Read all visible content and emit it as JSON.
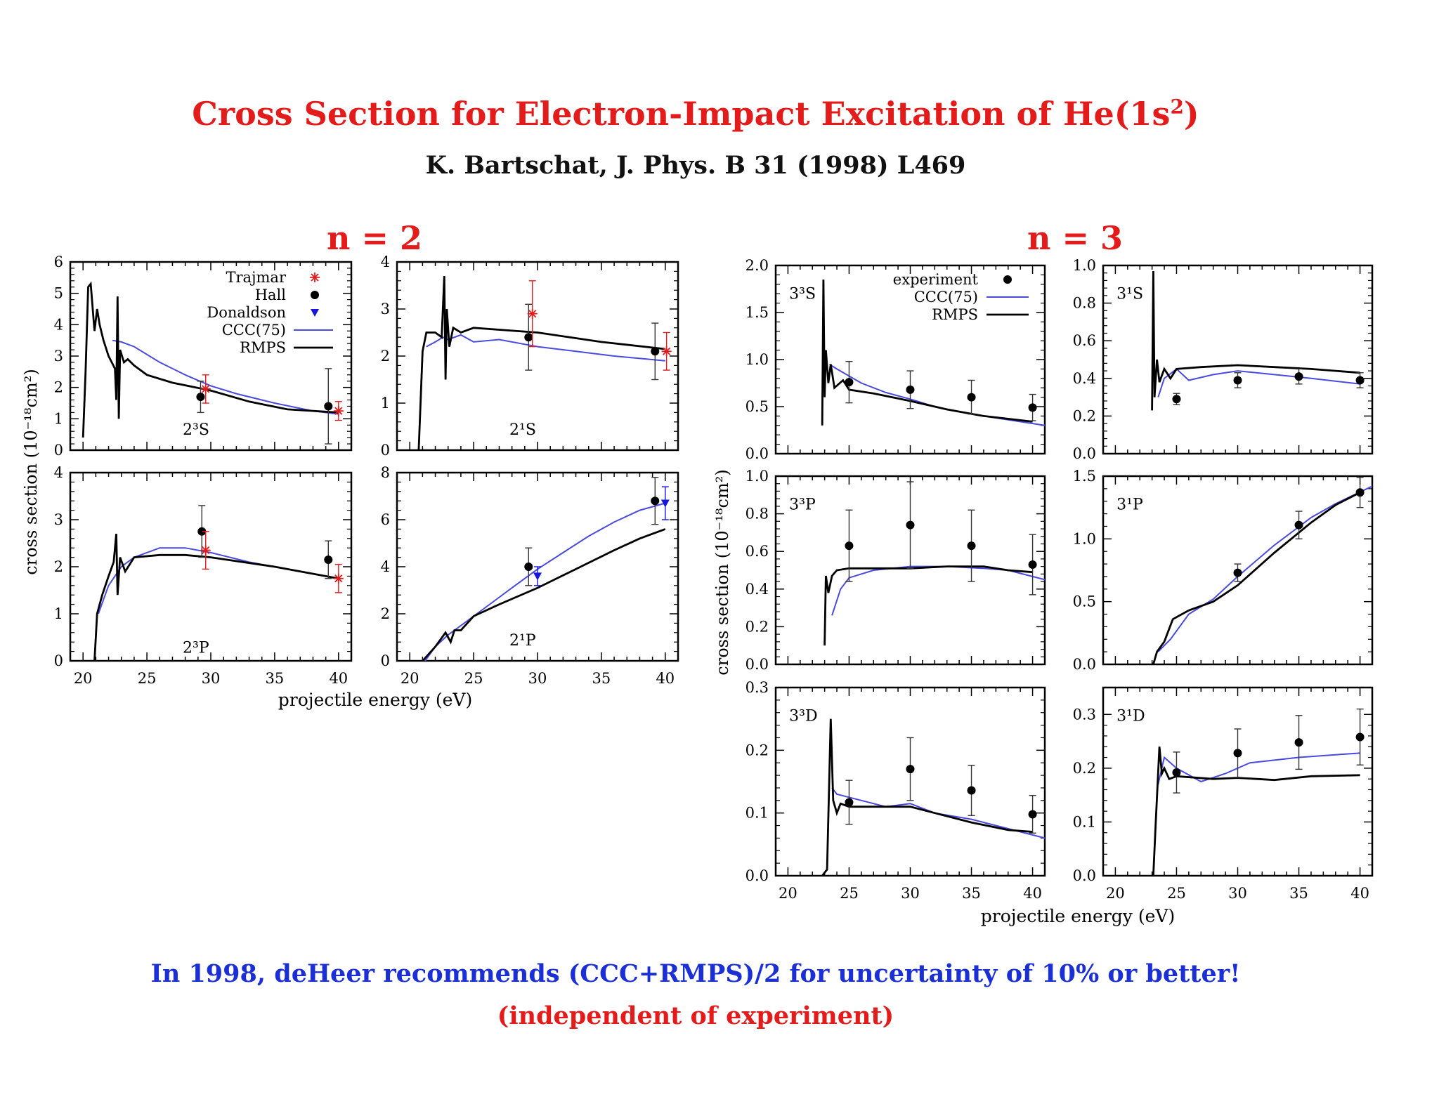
{
  "title": {
    "main_prefix": "Cross Section for Electron-Impact Excitation of He(1s",
    "main_sup": "2",
    "main_suffix": ")",
    "citation": "K. Bartschat, J. Phys. B 31 (1998) L469"
  },
  "groups": {
    "n2": "n = 2",
    "n3": "n = 3"
  },
  "footer": {
    "recommend": "In 1998, deHeer recommends (CCC+RMPS)/2 for uncertainty of 10% or better!",
    "independent": "(independent of experiment)"
  },
  "colors": {
    "title": "#e31b1b",
    "footer_blue": "#1b2fd6",
    "ccc": "#4a4adf",
    "rmps": "#000000",
    "trajmar": "#e31b1b",
    "donaldson": "#1515dd"
  },
  "axis_labels": {
    "n2_ylabel": "cross section (10⁻¹⁸cm²)",
    "n3_ylabel": "cross section (10⁻¹⁸cm²)",
    "n2_xlabel": "projectile energy (eV)",
    "n3_xlabel": "projectile energy (eV)"
  },
  "legend_n2": {
    "trajmar": "Trajmar",
    "hall": "Hall",
    "donaldson": "Donaldson",
    "ccc": "CCC(75)",
    "rmps": "RMPS"
  },
  "legend_n3": {
    "experiment": "experiment",
    "ccc": "CCC(75)",
    "rmps": "RMPS"
  },
  "chart_data": [
    {
      "type": "line",
      "label": "2³S",
      "xlim": [
        19,
        41
      ],
      "ylim": [
        0,
        6
      ],
      "yticks": [
        "0",
        "1",
        "2",
        "3",
        "4",
        "5",
        "6"
      ],
      "xticks": [
        "20",
        "25",
        "30",
        "35",
        "40"
      ],
      "ccc": [
        [
          22.3,
          3.5
        ],
        [
          23,
          3.45
        ],
        [
          24,
          3.3
        ],
        [
          26,
          2.8
        ],
        [
          28,
          2.4
        ],
        [
          30,
          2.05
        ],
        [
          32,
          1.8
        ],
        [
          35,
          1.5
        ],
        [
          38,
          1.25
        ],
        [
          40,
          1.15
        ]
      ],
      "rmps": [
        [
          20,
          0.4
        ],
        [
          20.2,
          2.5
        ],
        [
          20.4,
          5.2
        ],
        [
          20.6,
          5.3
        ],
        [
          20.9,
          3.8
        ],
        [
          21.1,
          4.5
        ],
        [
          21.3,
          4.0
        ],
        [
          21.6,
          3.5
        ],
        [
          22.0,
          3.0
        ],
        [
          22.5,
          2.6
        ],
        [
          22.6,
          1.6
        ],
        [
          22.7,
          4.9
        ],
        [
          22.8,
          1.0
        ],
        [
          22.9,
          3.2
        ],
        [
          23.2,
          2.8
        ],
        [
          23.5,
          2.9
        ],
        [
          24,
          2.7
        ],
        [
          25,
          2.4
        ],
        [
          27,
          2.15
        ],
        [
          30,
          1.9
        ],
        [
          33,
          1.55
        ],
        [
          36,
          1.3
        ],
        [
          40,
          1.2
        ]
      ],
      "hall": [
        [
          29.2,
          1.7,
          0.5
        ],
        [
          39.2,
          1.4,
          1.2
        ]
      ],
      "trajmar": [
        [
          29.6,
          1.95,
          0.45
        ],
        [
          40,
          1.25,
          0.3
        ]
      ]
    },
    {
      "type": "line",
      "label": "2¹S",
      "xlim": [
        19,
        41
      ],
      "ylim": [
        0,
        4
      ],
      "yticks": [
        "0",
        "1",
        "2",
        "3",
        "4"
      ],
      "xticks": [
        "20",
        "25",
        "30",
        "35",
        "40"
      ],
      "ccc": [
        [
          21.3,
          2.2
        ],
        [
          22,
          2.3
        ],
        [
          22.6,
          2.4
        ],
        [
          23,
          2.35
        ],
        [
          24,
          2.45
        ],
        [
          25,
          2.3
        ],
        [
          27,
          2.35
        ],
        [
          30,
          2.2
        ],
        [
          33,
          2.1
        ],
        [
          36,
          2.0
        ],
        [
          40,
          1.9
        ]
      ],
      "rmps": [
        [
          20.7,
          0.0
        ],
        [
          21.0,
          2.1
        ],
        [
          21.3,
          2.5
        ],
        [
          22.0,
          2.5
        ],
        [
          22.5,
          2.4
        ],
        [
          22.7,
          3.7
        ],
        [
          22.8,
          1.5
        ],
        [
          22.9,
          3.0
        ],
        [
          23.1,
          2.2
        ],
        [
          23.4,
          2.6
        ],
        [
          24,
          2.5
        ],
        [
          25,
          2.6
        ],
        [
          30,
          2.5
        ],
        [
          35,
          2.3
        ],
        [
          40,
          2.15
        ]
      ],
      "hall": [
        [
          29.3,
          2.4,
          0.7
        ],
        [
          39.2,
          2.1,
          0.6
        ]
      ],
      "trajmar": [
        [
          29.6,
          2.9,
          0.7
        ],
        [
          40.1,
          2.1,
          0.4
        ]
      ]
    },
    {
      "type": "line",
      "label": "2³P",
      "xlim": [
        19,
        41
      ],
      "ylim": [
        0,
        4
      ],
      "yticks": [
        "0",
        "1",
        "2",
        "3",
        "4"
      ],
      "xticks": [
        "20",
        "25",
        "30",
        "35",
        "40"
      ],
      "ccc": [
        [
          21.2,
          1.0
        ],
        [
          22,
          1.6
        ],
        [
          23,
          2.0
        ],
        [
          24,
          2.2
        ],
        [
          26,
          2.4
        ],
        [
          28,
          2.4
        ],
        [
          30,
          2.3
        ],
        [
          33,
          2.1
        ],
        [
          36,
          1.95
        ],
        [
          40,
          1.75
        ]
      ],
      "rmps": [
        [
          20.9,
          0.0
        ],
        [
          21.1,
          1.0
        ],
        [
          21.5,
          1.4
        ],
        [
          22,
          1.8
        ],
        [
          22.4,
          2.1
        ],
        [
          22.6,
          2.7
        ],
        [
          22.7,
          1.4
        ],
        [
          22.9,
          2.2
        ],
        [
          23.3,
          1.9
        ],
        [
          24,
          2.2
        ],
        [
          26,
          2.25
        ],
        [
          28,
          2.25
        ],
        [
          30,
          2.2
        ],
        [
          35,
          2.0
        ],
        [
          40,
          1.75
        ]
      ],
      "hall": [
        [
          29.3,
          2.75,
          0.55
        ],
        [
          39.2,
          2.15,
          0.4
        ]
      ],
      "trajmar": [
        [
          29.6,
          2.35,
          0.4
        ],
        [
          40,
          1.75,
          0.3
        ]
      ]
    },
    {
      "type": "line",
      "label": "2¹P",
      "xlim": [
        19,
        41
      ],
      "ylim": [
        0,
        8
      ],
      "yticks": [
        "0",
        "2",
        "4",
        "6",
        "8"
      ],
      "xticks": [
        "20",
        "25",
        "30",
        "35",
        "40"
      ],
      "ccc": [
        [
          21.2,
          0.0
        ],
        [
          22,
          0.6
        ],
        [
          23,
          1.1
        ],
        [
          24,
          1.5
        ],
        [
          26,
          2.3
        ],
        [
          28,
          3.1
        ],
        [
          30,
          3.9
        ],
        [
          32,
          4.6
        ],
        [
          34,
          5.3
        ],
        [
          36,
          5.9
        ],
        [
          38,
          6.4
        ],
        [
          40,
          6.7
        ]
      ],
      "rmps": [
        [
          21.0,
          0.0
        ],
        [
          22,
          0.6
        ],
        [
          22.8,
          1.2
        ],
        [
          23.2,
          0.8
        ],
        [
          23.5,
          1.3
        ],
        [
          24,
          1.3
        ],
        [
          25,
          1.9
        ],
        [
          27,
          2.4
        ],
        [
          30,
          3.1
        ],
        [
          33,
          3.9
        ],
        [
          36,
          4.7
        ],
        [
          38,
          5.2
        ],
        [
          40,
          5.6
        ]
      ],
      "hall": [
        [
          29.3,
          4.0,
          0.8
        ],
        [
          39.2,
          6.8,
          1.0
        ]
      ],
      "donaldson": [
        [
          30,
          3.6,
          0.4
        ],
        [
          40,
          6.7,
          0.7
        ]
      ]
    },
    {
      "type": "line",
      "label": "3³S",
      "xlim": [
        19,
        41
      ],
      "ylim": [
        0,
        2.0
      ],
      "yticks": [
        "0.0",
        "0.5",
        "1.0",
        "1.5",
        "2.0"
      ],
      "xticks": [
        "20",
        "25",
        "30",
        "35",
        "40"
      ],
      "ccc": [
        [
          23.4,
          0.95
        ],
        [
          24,
          0.9
        ],
        [
          26,
          0.75
        ],
        [
          28,
          0.65
        ],
        [
          30,
          0.58
        ],
        [
          32,
          0.5
        ],
        [
          35,
          0.42
        ],
        [
          38,
          0.36
        ],
        [
          41,
          0.3
        ]
      ],
      "rmps": [
        [
          22.8,
          0.3
        ],
        [
          22.9,
          1.85
        ],
        [
          23.0,
          0.6
        ],
        [
          23.1,
          1.1
        ],
        [
          23.3,
          0.75
        ],
        [
          23.5,
          0.95
        ],
        [
          23.8,
          0.7
        ],
        [
          24.5,
          0.78
        ],
        [
          25,
          0.68
        ],
        [
          27,
          0.64
        ],
        [
          30,
          0.56
        ],
        [
          33,
          0.47
        ],
        [
          36,
          0.4
        ],
        [
          40,
          0.34
        ]
      ],
      "experiment": [
        [
          25,
          0.76,
          0.22
        ],
        [
          30,
          0.68,
          0.2
        ],
        [
          35,
          0.6,
          0.18
        ],
        [
          40,
          0.49,
          0.14
        ]
      ]
    },
    {
      "type": "line",
      "label": "3¹S",
      "xlim": [
        19,
        41
      ],
      "ylim": [
        0,
        1.0
      ],
      "yticks": [
        "0.0",
        "0.2",
        "0.4",
        "0.6",
        "0.8",
        "1.0"
      ],
      "xticks": [
        "20",
        "25",
        "30",
        "35",
        "40"
      ],
      "ccc": [
        [
          23.5,
          0.3
        ],
        [
          24,
          0.4
        ],
        [
          25,
          0.45
        ],
        [
          26,
          0.39
        ],
        [
          28,
          0.42
        ],
        [
          30,
          0.44
        ],
        [
          33,
          0.42
        ],
        [
          36,
          0.4
        ],
        [
          40,
          0.37
        ]
      ],
      "rmps": [
        [
          23.0,
          0.23
        ],
        [
          23.1,
          0.97
        ],
        [
          23.2,
          0.3
        ],
        [
          23.4,
          0.5
        ],
        [
          23.6,
          0.38
        ],
        [
          24,
          0.45
        ],
        [
          24.5,
          0.4
        ],
        [
          25,
          0.45
        ],
        [
          27,
          0.46
        ],
        [
          30,
          0.47
        ],
        [
          33,
          0.46
        ],
        [
          36,
          0.45
        ],
        [
          40,
          0.43
        ]
      ],
      "experiment": [
        [
          25,
          0.29,
          0.03
        ],
        [
          30,
          0.39,
          0.04
        ],
        [
          35,
          0.41,
          0.04
        ],
        [
          40,
          0.39,
          0.04
        ]
      ]
    },
    {
      "type": "line",
      "label": "3³P",
      "xlim": [
        19,
        41
      ],
      "ylim": [
        0,
        1.0
      ],
      "yticks": [
        "0.0",
        "0.2",
        "0.4",
        "0.6",
        "0.8",
        "1.0"
      ],
      "xticks": [
        "20",
        "25",
        "30",
        "35",
        "40"
      ],
      "ccc": [
        [
          23.6,
          0.26
        ],
        [
          24.3,
          0.4
        ],
        [
          25,
          0.46
        ],
        [
          27,
          0.5
        ],
        [
          30,
          0.52
        ],
        [
          33,
          0.52
        ],
        [
          36,
          0.51
        ],
        [
          38,
          0.5
        ],
        [
          41,
          0.45
        ]
      ],
      "rmps": [
        [
          23.0,
          0.1
        ],
        [
          23.1,
          0.47
        ],
        [
          23.3,
          0.38
        ],
        [
          23.6,
          0.47
        ],
        [
          24.0,
          0.5
        ],
        [
          25,
          0.51
        ],
        [
          27,
          0.51
        ],
        [
          30,
          0.51
        ],
        [
          33,
          0.52
        ],
        [
          36,
          0.52
        ],
        [
          38,
          0.5
        ],
        [
          40,
          0.49
        ]
      ],
      "experiment": [
        [
          25,
          0.63,
          0.19
        ],
        [
          30,
          0.74,
          0.23
        ],
        [
          35,
          0.63,
          0.19
        ],
        [
          40,
          0.53,
          0.16
        ]
      ]
    },
    {
      "type": "line",
      "label": "3¹P",
      "xlim": [
        19,
        41
      ],
      "ylim": [
        0,
        1.5
      ],
      "yticks": [
        "0.0",
        "0.5",
        "1.0",
        "1.5"
      ],
      "xticks": [
        "20",
        "25",
        "30",
        "35",
        "40"
      ],
      "ccc": [
        [
          23.5,
          0.1
        ],
        [
          24.5,
          0.2
        ],
        [
          26,
          0.4
        ],
        [
          28,
          0.52
        ],
        [
          30,
          0.7
        ],
        [
          33,
          0.95
        ],
        [
          36,
          1.17
        ],
        [
          38,
          1.28
        ],
        [
          41,
          1.42
        ]
      ],
      "rmps": [
        [
          23.1,
          0.0
        ],
        [
          23.4,
          0.1
        ],
        [
          24,
          0.18
        ],
        [
          24.7,
          0.36
        ],
        [
          26,
          0.43
        ],
        [
          28,
          0.5
        ],
        [
          30,
          0.63
        ],
        [
          33,
          0.89
        ],
        [
          36,
          1.13
        ],
        [
          38,
          1.27
        ],
        [
          40,
          1.37
        ]
      ],
      "experiment": [
        [
          30,
          0.73,
          0.07
        ],
        [
          35,
          1.11,
          0.11
        ],
        [
          40,
          1.37,
          0.12
        ]
      ]
    },
    {
      "type": "line",
      "label": "3³D",
      "xlim": [
        19,
        41
      ],
      "ylim": [
        0,
        0.3
      ],
      "yticks": [
        "0.0",
        "0.1",
        "0.2",
        "0.3"
      ],
      "xticks": [
        "20",
        "25",
        "30",
        "35",
        "40"
      ],
      "ccc": [
        [
          23.6,
          0.14
        ],
        [
          24,
          0.13
        ],
        [
          26,
          0.12
        ],
        [
          28,
          0.11
        ],
        [
          30,
          0.115
        ],
        [
          32,
          0.1
        ],
        [
          35,
          0.09
        ],
        [
          38,
          0.075
        ],
        [
          41,
          0.06
        ]
      ],
      "rmps": [
        [
          22.8,
          0.0
        ],
        [
          23.2,
          0.01
        ],
        [
          23.5,
          0.25
        ],
        [
          23.7,
          0.12
        ],
        [
          24.0,
          0.1
        ],
        [
          24.3,
          0.115
        ],
        [
          25,
          0.11
        ],
        [
          27,
          0.11
        ],
        [
          30,
          0.11
        ],
        [
          32,
          0.1
        ],
        [
          35,
          0.085
        ],
        [
          38,
          0.073
        ],
        [
          40,
          0.07
        ]
      ],
      "experiment": [
        [
          25,
          0.117,
          0.035
        ],
        [
          30,
          0.17,
          0.05
        ],
        [
          35,
          0.136,
          0.04
        ],
        [
          40,
          0.098,
          0.03
        ]
      ]
    },
    {
      "type": "line",
      "label": "3¹D",
      "xlim": [
        19,
        41
      ],
      "ylim": [
        0,
        0.35
      ],
      "yticks": [
        "0.0",
        "0.1",
        "0.2",
        "0.3"
      ],
      "xticks": [
        "20",
        "25",
        "30",
        "35",
        "40"
      ],
      "ccc": [
        [
          23.5,
          0.17
        ],
        [
          24,
          0.22
        ],
        [
          25,
          0.2
        ],
        [
          27,
          0.175
        ],
        [
          29,
          0.19
        ],
        [
          31,
          0.21
        ],
        [
          35,
          0.22
        ],
        [
          38,
          0.225
        ],
        [
          40,
          0.228
        ]
      ],
      "rmps": [
        [
          23.1,
          0.0
        ],
        [
          23.3,
          0.1
        ],
        [
          23.6,
          0.24
        ],
        [
          23.8,
          0.19
        ],
        [
          24.0,
          0.2
        ],
        [
          24.4,
          0.18
        ],
        [
          25,
          0.185
        ],
        [
          28,
          0.18
        ],
        [
          30,
          0.182
        ],
        [
          33,
          0.178
        ],
        [
          36,
          0.185
        ],
        [
          40,
          0.187
        ]
      ],
      "experiment": [
        [
          25,
          0.192,
          0.038
        ],
        [
          30,
          0.228,
          0.045
        ],
        [
          35,
          0.248,
          0.05
        ],
        [
          40,
          0.258,
          0.052
        ]
      ]
    }
  ]
}
